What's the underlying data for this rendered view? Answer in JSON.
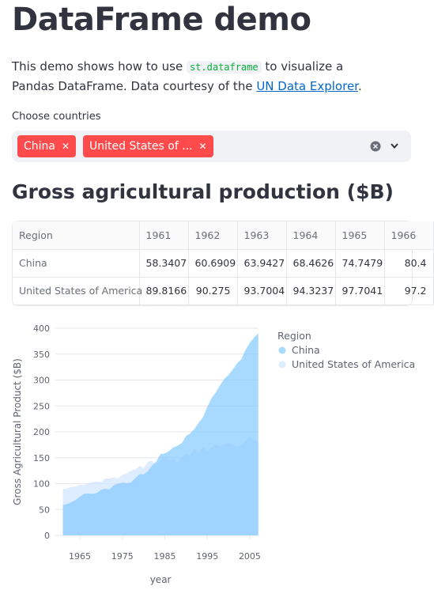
{
  "header": {
    "title": "DataFrame demo"
  },
  "description": {
    "before": "This demo shows how to use ",
    "code": "st.dataframe",
    "middle": " to visualize a Pandas DataFrame. Data courtesy of the ",
    "link": "UN Data Explorer",
    "after": "."
  },
  "multiselect": {
    "label": "Choose countries",
    "chips": [
      "China",
      "United States of ..."
    ]
  },
  "section": {
    "title": "Gross agricultural production ($B)"
  },
  "table": {
    "columns": [
      "Region",
      "1961",
      "1962",
      "1963",
      "1964",
      "1965",
      "1966"
    ],
    "rows": [
      [
        "China",
        58.3407,
        60.6909,
        63.9427,
        68.4626,
        74.7479,
        80.4
      ],
      [
        "United States of America",
        89.8166,
        90.275,
        93.7004,
        94.3237,
        97.7041,
        97.2
      ]
    ]
  },
  "chart_data": {
    "type": "area",
    "x_label": "year",
    "y_label": "Gross Agricultural Product ($B)",
    "legend_title": "Region",
    "x": [
      1961,
      1962,
      1963,
      1964,
      1965,
      1966,
      1967,
      1968,
      1969,
      1970,
      1971,
      1972,
      1973,
      1974,
      1975,
      1976,
      1977,
      1978,
      1979,
      1980,
      1981,
      1982,
      1983,
      1984,
      1985,
      1986,
      1987,
      1988,
      1989,
      1990,
      1991,
      1992,
      1993,
      1994,
      1995,
      1996,
      1997,
      1998,
      1999,
      2000,
      2001,
      2002,
      2003,
      2004,
      2005,
      2006,
      2007
    ],
    "series": [
      {
        "name": "United States of America",
        "color": "#cfe6ff",
        "values": [
          89.82,
          90.28,
          93.7,
          94.32,
          97.7,
          97.2,
          101,
          103,
          104,
          103,
          110,
          110,
          112,
          110,
          117,
          120,
          125,
          127,
          134,
          130,
          142,
          145,
          133,
          145,
          150,
          145,
          148,
          140,
          150,
          158,
          155,
          168,
          158,
          172,
          163,
          170,
          175,
          172,
          176,
          178,
          176,
          172,
          174,
          182,
          190,
          185,
          182
        ]
      },
      {
        "name": "China",
        "color": "#83c9ff",
        "values": [
          58.34,
          60.69,
          63.94,
          68.46,
          74.75,
          80.4,
          81,
          80,
          82,
          88,
          90,
          89,
          97,
          100,
          102,
          101,
          102,
          110,
          118,
          118,
          124,
          135,
          143,
          157,
          158,
          163,
          170,
          173,
          178,
          192,
          197,
          206,
          218,
          228,
          248,
          265,
          276,
          290,
          302,
          310,
          320,
          332,
          340,
          358,
          372,
          382,
          390
        ]
      }
    ],
    "xlim": [
      1961,
      2007
    ],
    "xticks": [
      1965,
      1975,
      1985,
      1995,
      2005
    ],
    "ylim": [
      0,
      400
    ],
    "yticks": [
      0,
      50,
      100,
      150,
      200,
      250,
      300,
      350,
      400
    ],
    "grid": true,
    "legend": "right"
  }
}
